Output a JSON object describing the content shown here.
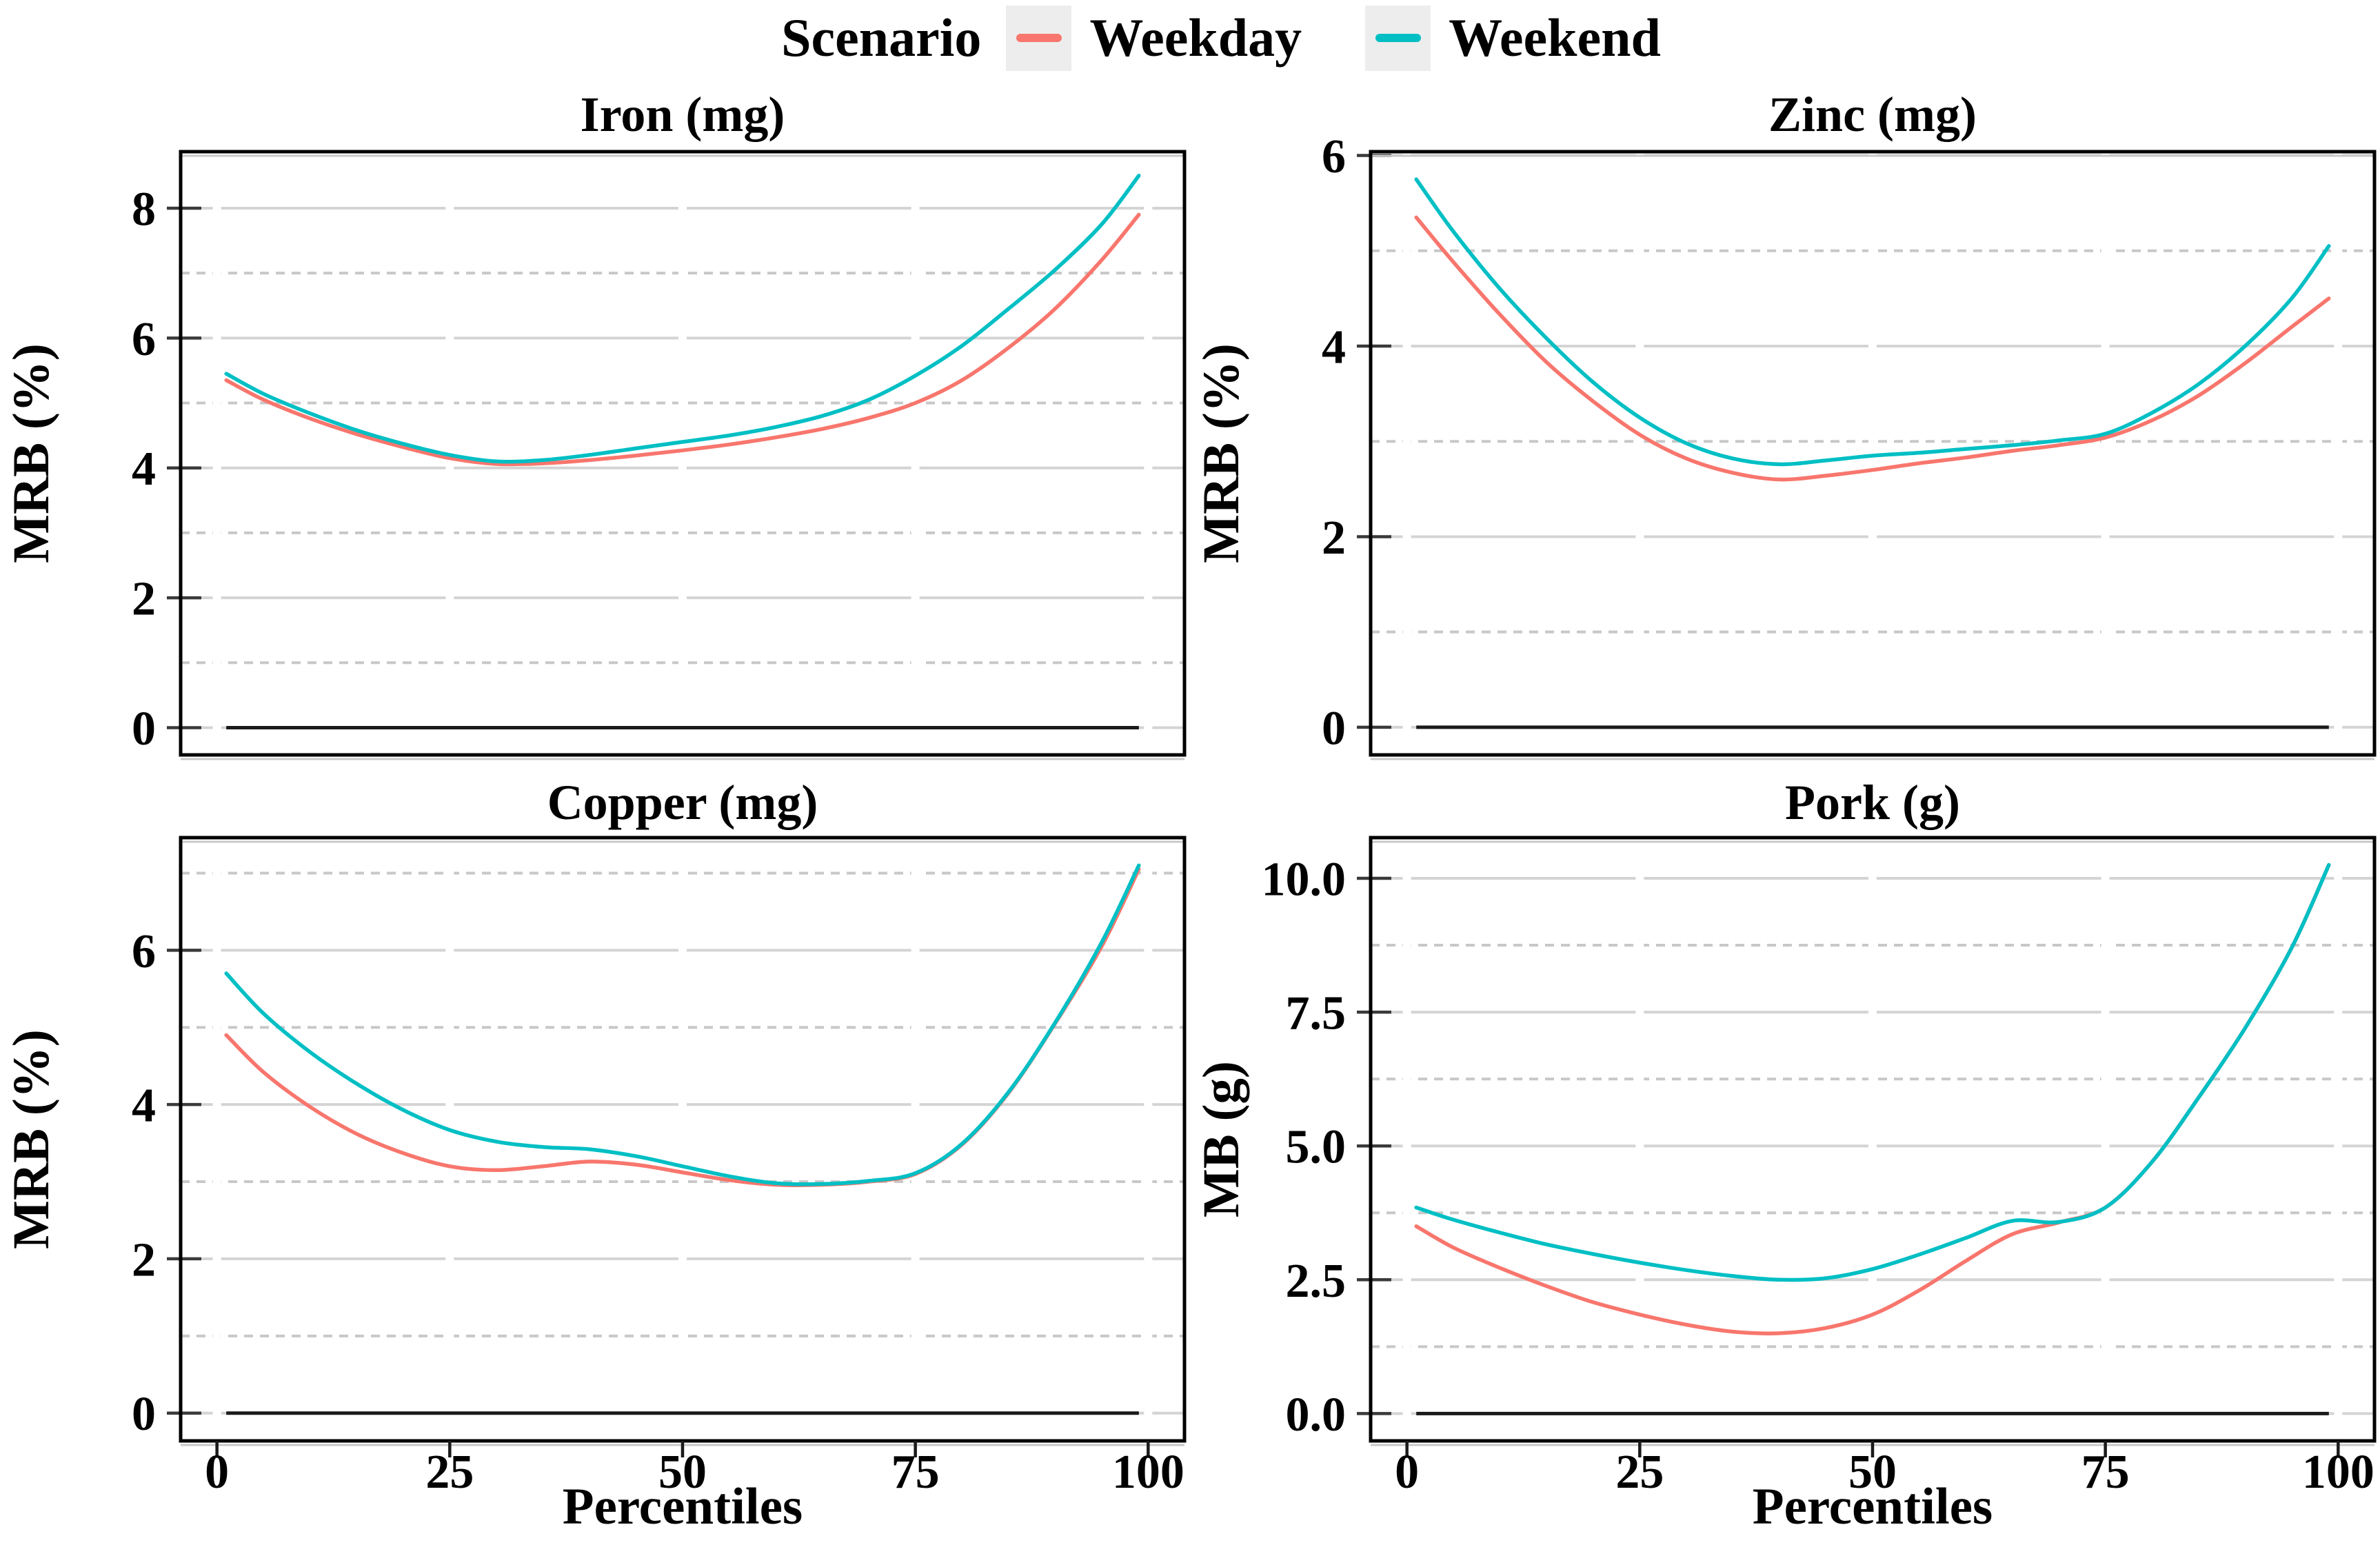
{
  "legend": {
    "title": "Scenario",
    "items": [
      {
        "label": "Weekday",
        "color": "#F8766D"
      },
      {
        "label": "Weekend",
        "color": "#00BFC4"
      }
    ]
  },
  "x_axis": {
    "title": "Percentiles",
    "ticks": [
      0,
      25,
      50,
      75,
      100
    ],
    "tick_labels": [
      "0",
      "25",
      "50",
      "75",
      "100"
    ],
    "range": [
      -3.9,
      103.9
    ]
  },
  "colors": {
    "grid_major": "#D4D4D4",
    "grid_minor": "#C8C8C8",
    "panel_border": "#000000",
    "zero_line": "#1A1A1A"
  },
  "chart_data": [
    {
      "type": "line",
      "title": "Iron (mg)",
      "ylabel": "MRB (%)",
      "ylim": [
        -0.42,
        8.87
      ],
      "yticks": [
        0,
        2,
        4,
        6,
        8
      ],
      "ytick_labels": [
        "0",
        "2",
        "4",
        "6",
        "8"
      ],
      "yminor": [
        1,
        3,
        5,
        7
      ],
      "grid": true,
      "zero_line_x": [
        1,
        99
      ],
      "x": [
        1,
        5,
        10,
        15,
        20,
        25,
        30,
        35,
        40,
        45,
        50,
        55,
        60,
        65,
        70,
        75,
        80,
        85,
        90,
        95,
        99
      ],
      "series": [
        {
          "name": "Weekday",
          "values": [
            5.35,
            5.05,
            4.76,
            4.52,
            4.32,
            4.15,
            4.06,
            4.07,
            4.12,
            4.19,
            4.27,
            4.36,
            4.47,
            4.6,
            4.77,
            5.0,
            5.35,
            5.85,
            6.45,
            7.2,
            7.9
          ]
        },
        {
          "name": "Weekend",
          "values": [
            5.45,
            5.14,
            4.84,
            4.58,
            4.37,
            4.2,
            4.1,
            4.12,
            4.2,
            4.3,
            4.4,
            4.5,
            4.63,
            4.8,
            5.05,
            5.42,
            5.88,
            6.45,
            7.05,
            7.75,
            8.5
          ]
        }
      ]
    },
    {
      "type": "line",
      "title": "Zinc (mg)",
      "ylabel": "MRB (%)",
      "ylim": [
        -0.29,
        6.04
      ],
      "yticks": [
        0,
        2,
        4,
        6
      ],
      "ytick_labels": [
        "0",
        "2",
        "4",
        "6"
      ],
      "yminor": [
        1,
        3,
        5
      ],
      "grid": true,
      "zero_line_x": [
        1,
        99
      ],
      "x": [
        1,
        5,
        10,
        15,
        20,
        25,
        30,
        35,
        40,
        45,
        50,
        55,
        60,
        65,
        70,
        75,
        80,
        85,
        90,
        95,
        99
      ],
      "series": [
        {
          "name": "Weekday",
          "values": [
            5.35,
            4.88,
            4.33,
            3.83,
            3.42,
            3.07,
            2.82,
            2.67,
            2.6,
            2.64,
            2.7,
            2.77,
            2.83,
            2.9,
            2.96,
            3.04,
            3.22,
            3.48,
            3.82,
            4.2,
            4.5
          ]
        },
        {
          "name": "Weekend",
          "values": [
            5.75,
            5.2,
            4.6,
            4.08,
            3.62,
            3.25,
            2.98,
            2.82,
            2.76,
            2.8,
            2.85,
            2.88,
            2.92,
            2.96,
            3.01,
            3.08,
            3.3,
            3.6,
            4.0,
            4.5,
            5.05
          ]
        }
      ]
    },
    {
      "type": "line",
      "title": "Copper (mg)",
      "ylabel": "MRB (%)",
      "ylim": [
        -0.36,
        7.46
      ],
      "yticks": [
        0,
        2,
        4,
        6
      ],
      "ytick_labels": [
        "0",
        "2",
        "4",
        "6"
      ],
      "yminor": [
        1,
        3,
        5,
        7
      ],
      "grid": true,
      "zero_line_x": [
        1,
        99
      ],
      "x": [
        1,
        5,
        10,
        15,
        20,
        25,
        30,
        35,
        40,
        45,
        50,
        55,
        60,
        65,
        70,
        75,
        80,
        85,
        90,
        95,
        99
      ],
      "series": [
        {
          "name": "Weekday",
          "values": [
            4.9,
            4.42,
            3.97,
            3.62,
            3.37,
            3.2,
            3.15,
            3.2,
            3.26,
            3.22,
            3.12,
            3.02,
            2.96,
            2.96,
            3.0,
            3.1,
            3.48,
            4.15,
            5.05,
            6.05,
            7.05
          ]
        },
        {
          "name": "Weekend",
          "values": [
            5.7,
            5.18,
            4.68,
            4.27,
            3.93,
            3.67,
            3.52,
            3.45,
            3.42,
            3.33,
            3.2,
            3.07,
            2.98,
            2.97,
            3.01,
            3.11,
            3.49,
            4.16,
            5.06,
            6.1,
            7.1
          ]
        }
      ]
    },
    {
      "type": "line",
      "title": "Pork (g)",
      "ylabel": "MB (g)",
      "ylim": [
        -0.51,
        10.76
      ],
      "yticks": [
        0,
        2.5,
        5,
        7.5,
        10
      ],
      "ytick_labels": [
        "0.0",
        "2.5",
        "5.0",
        "7.5",
        "10.0"
      ],
      "yminor": [
        1.25,
        3.75,
        6.25,
        8.75
      ],
      "grid": true,
      "zero_line_x": [
        1,
        99
      ],
      "x": [
        1,
        5,
        10,
        15,
        20,
        25,
        30,
        35,
        40,
        45,
        50,
        55,
        60,
        65,
        70,
        75,
        80,
        85,
        90,
        95,
        99
      ],
      "series": [
        {
          "name": "Weekday",
          "values": [
            3.5,
            3.1,
            2.72,
            2.38,
            2.08,
            1.85,
            1.66,
            1.53,
            1.5,
            1.6,
            1.85,
            2.3,
            2.85,
            3.35,
            3.57,
            3.85,
            4.7,
            5.9,
            7.2,
            8.7,
            10.25
          ]
        },
        {
          "name": "Weekend",
          "values": [
            3.85,
            3.62,
            3.38,
            3.16,
            2.98,
            2.82,
            2.68,
            2.57,
            2.5,
            2.53,
            2.7,
            2.97,
            3.28,
            3.6,
            3.58,
            3.85,
            4.7,
            5.9,
            7.2,
            8.7,
            10.25
          ]
        }
      ]
    }
  ]
}
